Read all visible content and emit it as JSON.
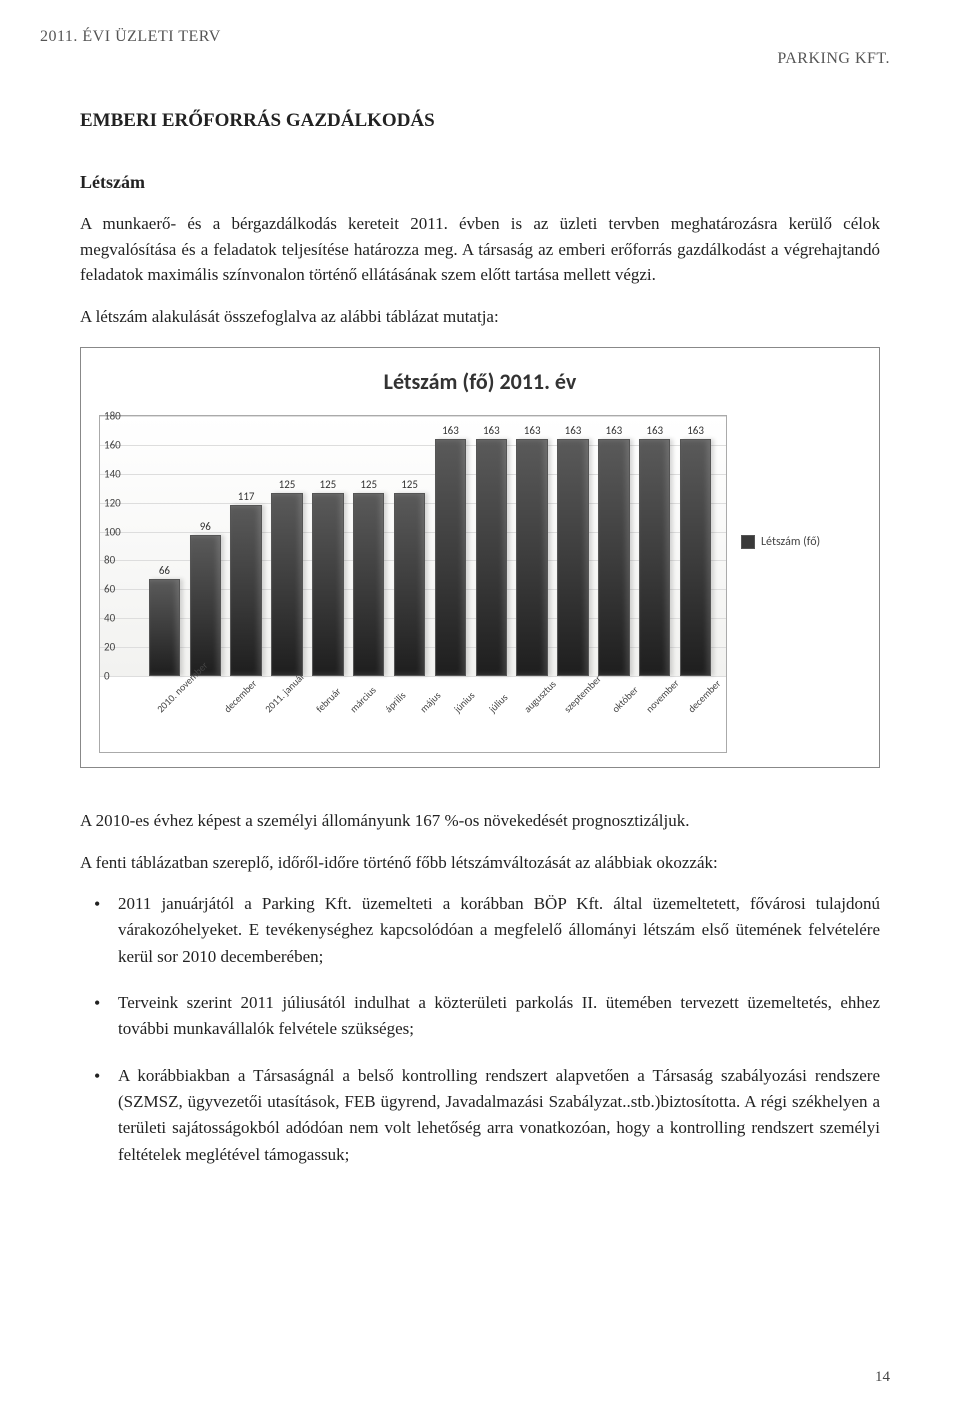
{
  "header": {
    "left": "2011. ÉVI ÜZLETI TERV",
    "right": "PARKING KFT."
  },
  "section_title": "EMBERI ERŐFORRÁS GAZDÁLKODÁS",
  "subheading": "Létszám",
  "para1": "A munkaerő- és a bérgazdálkodás kereteit 2011. évben is az üzleti tervben meghatározásra kerülő célok megvalósítása és a feladatok teljesítése határozza meg. A társaság az emberi erőforrás gazdálkodást a végrehajtandó feladatok maximális színvonalon történő ellátásának szem előtt tartása mellett végzi.",
  "para2": "A létszám alakulását összefoglalva az alábbi táblázat mutatja:",
  "chart": {
    "title": "Létszám (fő) 2011. év",
    "type": "bar",
    "ylim": [
      0,
      180
    ],
    "ytick_step": 20,
    "yticks": [
      0,
      20,
      40,
      60,
      80,
      100,
      120,
      140,
      160,
      180
    ],
    "categories": [
      "2010. november",
      "december",
      "2011. január",
      "február",
      "március",
      "április",
      "május",
      "június",
      "július",
      "augusztus",
      "szeptember",
      "október",
      "november",
      "december"
    ],
    "values": [
      66,
      96,
      117,
      125,
      125,
      125,
      125,
      163,
      163,
      163,
      163,
      163,
      163,
      163
    ],
    "bar_color": "#3a3a3a",
    "bar_border_color": "#555555",
    "grid_color": "#dddddd",
    "background_color": "#ffffff",
    "title_fontsize": 22,
    "label_fontsize": 11,
    "tick_fontsize": 11,
    "legend_label": "Létszám (fő)",
    "font_family": "Calibri"
  },
  "para3": "A 2010-es évhez képest a személyi állományunk 167 %-os növekedését prognosztizáljuk.",
  "para4": "A fenti táblázatban szereplő, időről-időre történő főbb létszámváltozását az alábbiak okozzák:",
  "bullets": [
    "2011 januárjától a Parking Kft. üzemelteti a korábban BÖP Kft. által üzemeltetett, fővárosi tulajdonú várakozóhelyeket. E tevékenységhez kapcsolódóan a megfelelő állományi létszám első ütemének felvételére kerül sor 2010 decemberében;",
    "Terveink szerint 2011 júliusától indulhat a közterületi parkolás II. ütemében tervezett üzemeltetés, ehhez további munkavállalók felvétele szükséges;",
    "A korábbiakban a Társaságnál a belső kontrolling rendszert alapvetően a Társaság szabályozási rendszere (SZMSZ, ügyvezetői utasítások, FEB ügyrend, Javadalmazási Szabályzat..stb.)biztosította. A régi székhelyen a területi sajátosságokból adódóan nem volt lehetőség arra vonatkozóan, hogy a kontrolling rendszert személyi feltételek meglétével támogassuk;"
  ],
  "page_number": "14"
}
